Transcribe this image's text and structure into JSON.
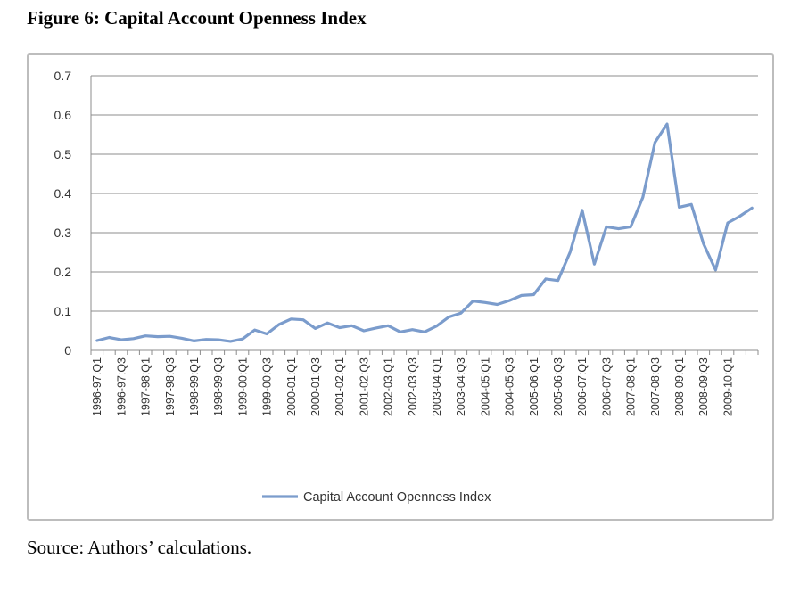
{
  "figure": {
    "title": "Figure 6: Capital Account Openness Index",
    "source": "Source: Authors’ calculations."
  },
  "chart_data": {
    "type": "line",
    "title": "",
    "xlabel": "",
    "ylabel": "",
    "ylim": [
      0,
      0.7
    ],
    "yticks": [
      "0",
      "0.1",
      "0.2",
      "0.3",
      "0.4",
      "0.5",
      "0.6",
      "0.7"
    ],
    "grid": true,
    "legend_position": "bottom",
    "line_color": "#7b9ccc",
    "x": [
      "1996-97:Q1",
      "1996-97:Q2",
      "1996-97:Q3",
      "1996-97:Q4",
      "1997-98:Q1",
      "1997-98:Q2",
      "1997-98:Q3",
      "1997-98:Q4",
      "1998-99:Q1",
      "1998-99:Q2",
      "1998-99:Q3",
      "1998-99:Q4",
      "1999-00:Q1",
      "1999-00:Q2",
      "1999-00:Q3",
      "1999-00:Q4",
      "2000-01:Q1",
      "2000-01:Q2",
      "2000-01:Q3",
      "2000-01:Q4",
      "2001-02:Q1",
      "2001-02:Q2",
      "2001-02:Q3",
      "2001-02:Q4",
      "2002-03:Q1",
      "2002-03:Q2",
      "2002-03:Q3",
      "2002-03:Q4",
      "2003-04:Q1",
      "2003-04:Q2",
      "2003-04:Q3",
      "2003-04:Q4",
      "2004-05:Q1",
      "2004-05:Q2",
      "2004-05:Q3",
      "2004-05:Q4",
      "2005-06:Q1",
      "2005-06:Q2",
      "2005-06:Q3",
      "2005-06:Q4",
      "2006-07:Q1",
      "2006-07:Q2",
      "2006-07:Q3",
      "2006-07:Q4",
      "2007-08:Q1",
      "2007-08:Q2",
      "2007-08:Q3",
      "2007-08:Q4",
      "2008-09:Q1",
      "2008-09:Q2",
      "2008-09:Q3",
      "2008-09:Q4",
      "2009-10:Q1",
      "2009-10:Q2",
      "2009-10:Q3"
    ],
    "x_tick_labels": [
      "1996-97:Q1",
      "1996-97:Q3",
      "1997-98:Q1",
      "1997-98:Q3",
      "1998-99:Q1",
      "1998-99:Q3",
      "1999-00:Q1",
      "1999-00:Q3",
      "2000-01:Q1",
      "2000-01:Q3",
      "2001-02:Q1",
      "2001-02:Q3",
      "2002-03:Q1",
      "2002-03:Q3",
      "2003-04:Q1",
      "2003-04:Q3",
      "2004-05:Q1",
      "2004-05:Q3",
      "2005-06:Q1",
      "2005-06:Q3",
      "2006-07:Q1",
      "2006-07:Q3",
      "2007-08:Q1",
      "2007-08:Q3",
      "2008-09:Q1",
      "2008-09:Q3",
      "2009-10:Q1"
    ],
    "series": [
      {
        "name": "Capital Account Openness Index",
        "values": [
          0.025,
          0.033,
          0.027,
          0.03,
          0.037,
          0.035,
          0.036,
          0.031,
          0.024,
          0.028,
          0.027,
          0.023,
          0.029,
          0.052,
          0.042,
          0.066,
          0.08,
          0.078,
          0.056,
          0.07,
          0.058,
          0.063,
          0.05,
          0.057,
          0.063,
          0.047,
          0.053,
          0.047,
          0.062,
          0.085,
          0.095,
          0.126,
          0.122,
          0.117,
          0.127,
          0.14,
          0.142,
          0.182,
          0.178,
          0.25,
          0.357,
          0.22,
          0.315,
          0.31,
          0.315,
          0.39,
          0.53,
          0.577,
          0.365,
          0.372,
          0.272,
          0.205,
          0.325,
          0.342,
          0.363
        ]
      }
    ]
  }
}
